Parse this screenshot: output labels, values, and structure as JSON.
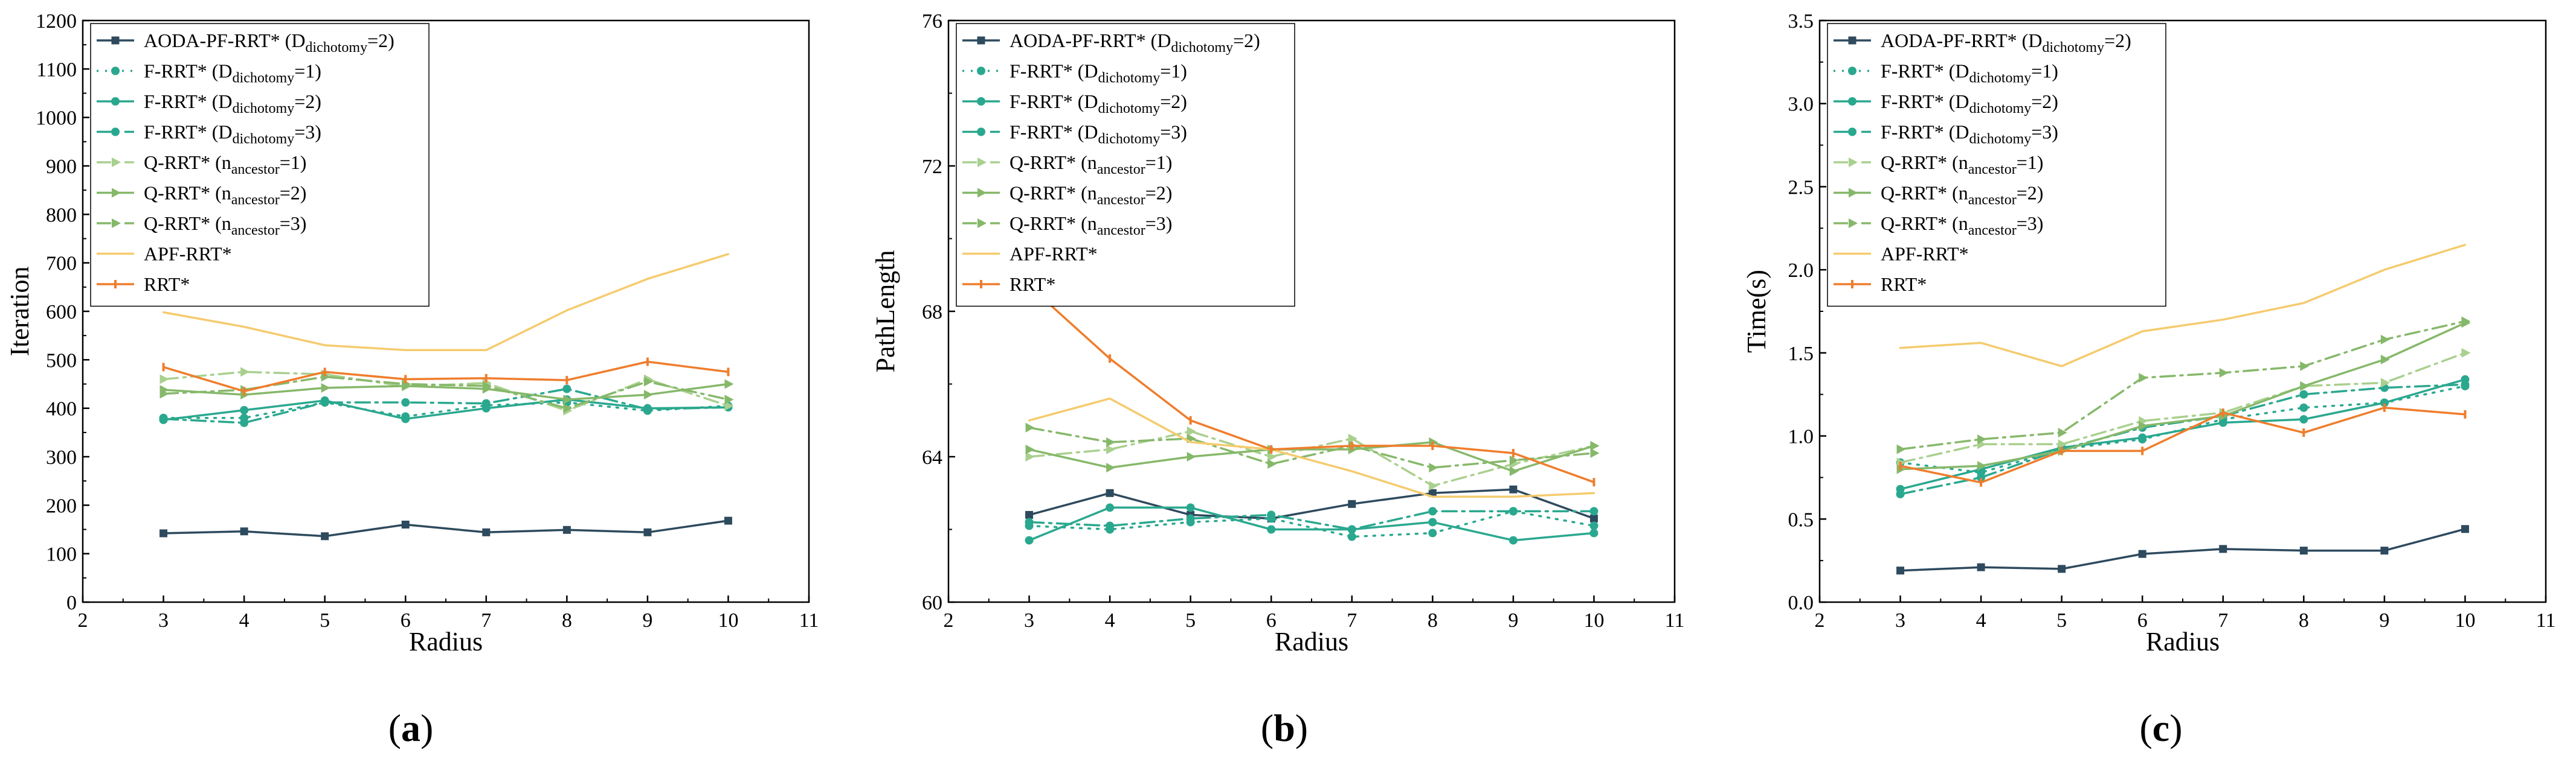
{
  "figure": {
    "panel_labels": [
      "(a)",
      "(b)",
      "(c)"
    ]
  },
  "series_styles": [
    {
      "key": "aoda_d2",
      "color": "#2e4a5e",
      "dash": "solid",
      "marker": "square"
    },
    {
      "key": "frrt_d1",
      "color": "#2aa88f",
      "dash": "dot",
      "marker": "circle"
    },
    {
      "key": "frrt_d2",
      "color": "#2aa88f",
      "dash": "solid",
      "marker": "circle"
    },
    {
      "key": "frrt_d3",
      "color": "#2aa88f",
      "dash": "dashdot",
      "marker": "circle"
    },
    {
      "key": "qrrt_n1",
      "color": "#a9d08e",
      "dash": "dashdot",
      "marker": "triangle"
    },
    {
      "key": "qrrt_n2",
      "color": "#86b86a",
      "dash": "solid",
      "marker": "triangle"
    },
    {
      "key": "qrrt_n3",
      "color": "#86b86a",
      "dash": "dashdot",
      "marker": "triangle"
    },
    {
      "key": "apf",
      "color": "#f5cb6e",
      "dash": "solid",
      "marker": "none"
    },
    {
      "key": "rrt",
      "color": "#ef7d2c",
      "dash": "solid",
      "marker": "tick"
    }
  ],
  "legend": [
    {
      "base": "AODA-PF-RRT* (D",
      "sub": "dichotomy",
      "tail": "=2)"
    },
    {
      "base": "F-RRT* (D",
      "sub": "dichotomy",
      "tail": "=1)"
    },
    {
      "base": "F-RRT* (D",
      "sub": "dichotomy",
      "tail": "=2)"
    },
    {
      "base": "F-RRT* (D",
      "sub": "dichotomy",
      "tail": "=3)"
    },
    {
      "base": "Q-RRT* (n",
      "sub": "ancestor",
      "tail": "=1)"
    },
    {
      "base": "Q-RRT* (n",
      "sub": "ancestor",
      "tail": "=2)"
    },
    {
      "base": "Q-RRT* (n",
      "sub": "ancestor",
      "tail": "=3)"
    },
    {
      "base": "APF-RRT*",
      "sub": "",
      "tail": ""
    },
    {
      "base": "RRT*",
      "sub": "",
      "tail": ""
    }
  ],
  "chart_data": [
    {
      "type": "line",
      "panel": "(a)",
      "xlabel": "Radius",
      "ylabel": "Iteration",
      "xlim": [
        2,
        11
      ],
      "ylim": [
        0,
        1200
      ],
      "xticks": [
        "2",
        "3",
        "4",
        "5",
        "6",
        "7",
        "8",
        "9",
        "10",
        "11"
      ],
      "yticks": [
        "0",
        "100",
        "200",
        "300",
        "400",
        "500",
        "600",
        "700",
        "800",
        "900",
        "1000",
        "1100",
        "1200"
      ],
      "x": [
        3,
        4,
        5,
        6,
        7,
        8,
        9,
        10
      ],
      "series": [
        {
          "name": "AODA-PF-RRT* (Ddichotomy=2)",
          "values": [
            142,
            146,
            136,
            160,
            144,
            149,
            144,
            168
          ]
        },
        {
          "name": "F-RRT* (Ddichotomy=1)",
          "values": [
            380,
            380,
            412,
            383,
            406,
            412,
            395,
            405
          ]
        },
        {
          "name": "F-RRT* (Ddichotomy=2)",
          "values": [
            376,
            396,
            416,
            378,
            400,
            418,
            400,
            402
          ]
        },
        {
          "name": "F-RRT* (Ddichotomy=3)",
          "values": [
            378,
            370,
            412,
            412,
            410,
            440,
            398,
            402
          ]
        },
        {
          "name": "Q-RRT* (nancestor=1)",
          "values": [
            460,
            475,
            470,
            445,
            452,
            395,
            460,
            405
          ]
        },
        {
          "name": "Q-RRT* (nancestor=2)",
          "values": [
            438,
            428,
            442,
            446,
            440,
            418,
            428,
            450
          ]
        },
        {
          "name": "Q-RRT* (nancestor=3)",
          "values": [
            430,
            438,
            465,
            450,
            446,
            400,
            455,
            418
          ]
        },
        {
          "name": "APF-RRT*",
          "values": [
            598,
            568,
            530,
            520,
            520,
            602,
            667,
            718
          ]
        },
        {
          "name": "RRT*",
          "values": [
            485,
            435,
            475,
            460,
            462,
            458,
            496,
            475
          ]
        }
      ]
    },
    {
      "type": "line",
      "panel": "(b)",
      "xlabel": "Radius",
      "ylabel": "PathLength",
      "xlim": [
        2,
        11
      ],
      "ylim": [
        60,
        76
      ],
      "xticks": [
        "2",
        "3",
        "4",
        "5",
        "6",
        "7",
        "8",
        "9",
        "10",
        "11"
      ],
      "yticks": [
        "60",
        "64",
        "68",
        "72",
        "76"
      ],
      "x": [
        3,
        4,
        5,
        6,
        7,
        8,
        9,
        10
      ],
      "series": [
        {
          "name": "AODA-PF-RRT* (Ddichotomy=2)",
          "values": [
            62.4,
            63.0,
            62.4,
            62.3,
            62.7,
            63.0,
            63.1,
            62.3
          ]
        },
        {
          "name": "F-RRT* (Ddichotomy=1)",
          "values": [
            62.1,
            62.0,
            62.2,
            62.3,
            61.8,
            61.9,
            62.5,
            62.1
          ]
        },
        {
          "name": "F-RRT* (Ddichotomy=2)",
          "values": [
            61.7,
            62.6,
            62.6,
            62.0,
            62.0,
            62.2,
            61.7,
            61.9
          ]
        },
        {
          "name": "F-RRT* (Ddichotomy=3)",
          "values": [
            62.2,
            62.1,
            62.3,
            62.4,
            62.0,
            62.5,
            62.5,
            62.5
          ]
        },
        {
          "name": "Q-RRT* (nancestor=1)",
          "values": [
            64.0,
            64.2,
            64.7,
            64.0,
            64.5,
            63.2,
            63.8,
            64.3
          ]
        },
        {
          "name": "Q-RRT* (nancestor=2)",
          "values": [
            64.2,
            63.7,
            64.0,
            64.2,
            64.2,
            64.4,
            63.6,
            64.3
          ]
        },
        {
          "name": "Q-RRT* (nancestor=3)",
          "values": [
            64.8,
            64.4,
            64.5,
            63.8,
            64.3,
            63.7,
            63.9,
            64.1
          ]
        },
        {
          "name": "APF-RRT*",
          "values": [
            65.0,
            65.6,
            64.4,
            64.2,
            63.6,
            62.9,
            62.9,
            63.0
          ]
        },
        {
          "name": "RRT*",
          "values": [
            68.7,
            66.7,
            65.0,
            64.2,
            64.3,
            64.3,
            64.1,
            63.3
          ]
        }
      ]
    },
    {
      "type": "line",
      "panel": "(c)",
      "xlabel": "Radius",
      "ylabel": "Time(s)",
      "xlim": [
        2,
        11
      ],
      "ylim": [
        0,
        3.5
      ],
      "xticks": [
        "2",
        "3",
        "4",
        "5",
        "6",
        "7",
        "8",
        "9",
        "10",
        "11"
      ],
      "yticks": [
        "0.0",
        "0.5",
        "1.0",
        "1.5",
        "2.0",
        "2.5",
        "3.0",
        "3.5"
      ],
      "x": [
        3,
        4,
        5,
        6,
        7,
        8,
        9,
        10
      ],
      "series": [
        {
          "name": "AODA-PF-RRT* (Ddichotomy=2)",
          "values": [
            0.19,
            0.21,
            0.2,
            0.29,
            0.32,
            0.31,
            0.31,
            0.44
          ]
        },
        {
          "name": "F-RRT* (Ddichotomy=1)",
          "values": [
            0.84,
            0.78,
            0.92,
            0.98,
            1.1,
            1.17,
            1.2,
            1.3
          ]
        },
        {
          "name": "F-RRT* (Ddichotomy=2)",
          "values": [
            0.68,
            0.8,
            0.93,
            0.99,
            1.08,
            1.1,
            1.2,
            1.34
          ]
        },
        {
          "name": "F-RRT* (Ddichotomy=3)",
          "values": [
            0.65,
            0.75,
            0.92,
            1.05,
            1.12,
            1.25,
            1.29,
            1.31
          ]
        },
        {
          "name": "Q-RRT* (nancestor=1)",
          "values": [
            0.84,
            0.95,
            0.95,
            1.09,
            1.14,
            1.3,
            1.32,
            1.5
          ]
        },
        {
          "name": "Q-RRT* (nancestor=2)",
          "values": [
            0.8,
            0.82,
            0.91,
            1.06,
            1.12,
            1.3,
            1.46,
            1.68
          ]
        },
        {
          "name": "Q-RRT* (nancestor=3)",
          "values": [
            0.92,
            0.98,
            1.02,
            1.35,
            1.38,
            1.42,
            1.58,
            1.69
          ]
        },
        {
          "name": "APF-RRT*",
          "values": [
            1.53,
            1.56,
            1.42,
            1.63,
            1.7,
            1.8,
            2.0,
            2.15
          ]
        },
        {
          "name": "RRT*",
          "values": [
            0.82,
            0.72,
            0.91,
            0.91,
            1.14,
            1.02,
            1.17,
            1.13
          ]
        }
      ]
    }
  ]
}
